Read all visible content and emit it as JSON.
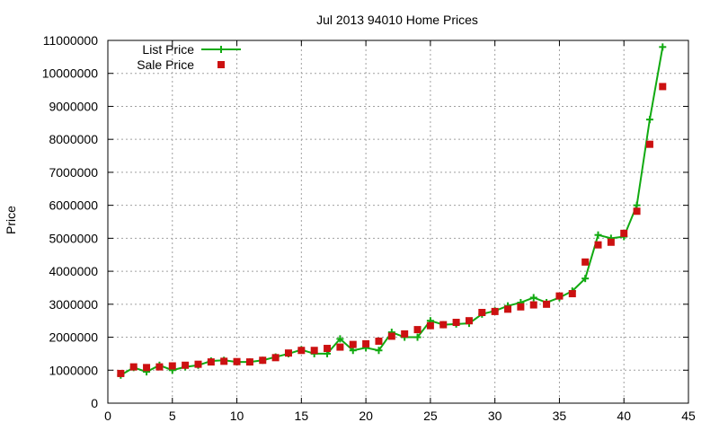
{
  "chart_data": {
    "type": "line",
    "title": "Jul 2013 94010 Home Prices",
    "xlabel": "",
    "ylabel": "Price",
    "xlim": [
      0,
      45
    ],
    "ylim": [
      0,
      11000000
    ],
    "x_ticks": [
      0,
      5,
      10,
      15,
      20,
      25,
      30,
      35,
      40,
      45
    ],
    "y_ticks": [
      0,
      1000000,
      2000000,
      3000000,
      4000000,
      5000000,
      6000000,
      7000000,
      8000000,
      9000000,
      10000000,
      11000000
    ],
    "grid": true,
    "legend_position": "top-left",
    "x": [
      1,
      2,
      3,
      4,
      5,
      6,
      7,
      8,
      9,
      10,
      11,
      12,
      13,
      14,
      15,
      16,
      17,
      18,
      19,
      20,
      21,
      22,
      23,
      24,
      25,
      26,
      27,
      28,
      29,
      30,
      31,
      32,
      33,
      34,
      35,
      36,
      37,
      38,
      39,
      40,
      41,
      42,
      43
    ],
    "series": [
      {
        "name": "List Price",
        "style": "line+cross",
        "color": "#11aa11",
        "values": [
          850000,
          1080000,
          950000,
          1150000,
          1000000,
          1100000,
          1150000,
          1280000,
          1300000,
          1250000,
          1250000,
          1300000,
          1400000,
          1500000,
          1620000,
          1500000,
          1500000,
          1950000,
          1600000,
          1680000,
          1600000,
          2150000,
          2000000,
          2000000,
          2500000,
          2380000,
          2400000,
          2420000,
          2700000,
          2800000,
          2950000,
          3050000,
          3200000,
          3050000,
          3200000,
          3400000,
          3780000,
          5100000,
          5000000,
          5050000,
          6000000,
          8600000,
          10800000
        ]
      },
      {
        "name": "Sale Price",
        "style": "square",
        "color": "#cc1111",
        "values": [
          900000,
          1100000,
          1080000,
          1100000,
          1130000,
          1150000,
          1180000,
          1250000,
          1270000,
          1260000,
          1250000,
          1300000,
          1380000,
          1520000,
          1600000,
          1600000,
          1660000,
          1700000,
          1780000,
          1800000,
          1880000,
          2030000,
          2100000,
          2230000,
          2350000,
          2380000,
          2450000,
          2500000,
          2750000,
          2780000,
          2850000,
          2920000,
          2980000,
          3000000,
          3250000,
          3320000,
          4280000,
          4800000,
          4880000,
          5150000,
          5820000,
          7850000,
          9600000
        ]
      }
    ]
  }
}
